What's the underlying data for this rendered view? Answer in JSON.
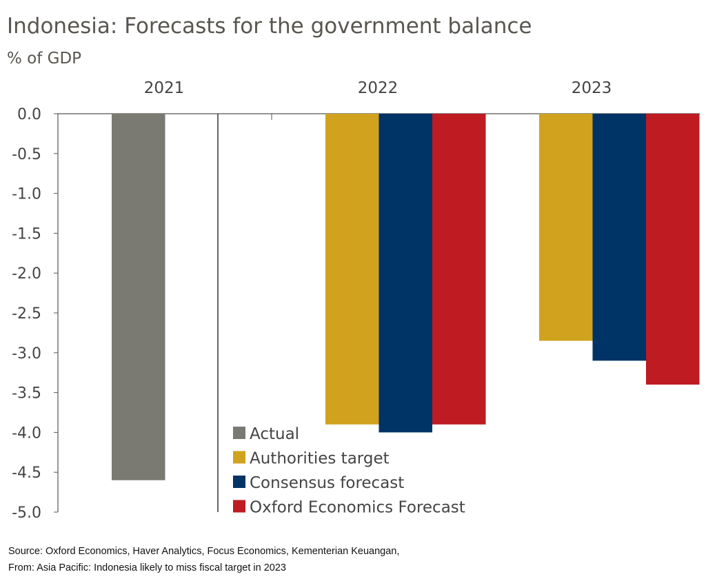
{
  "chart_data": {
    "type": "bar",
    "title": "Indonesia: Forecasts for the government balance",
    "ylabel": "% of GDP",
    "categories": [
      "2021",
      "2022",
      "2023"
    ],
    "ylim": [
      -5.0,
      0.0
    ],
    "yticks": [
      "0.0",
      "-0.5",
      "-1.0",
      "-1.5",
      "-2.0",
      "-2.5",
      "-3.0",
      "-3.5",
      "-4.0",
      "-4.5",
      "-5.0"
    ],
    "grid": false,
    "legend_position": "bottom-center",
    "series": [
      {
        "name": "Actual",
        "color": "#7a7a73",
        "values": [
          -4.6,
          null,
          null
        ]
      },
      {
        "name": "Authorities target",
        "color": "#d0a21e",
        "values": [
          null,
          -3.9,
          -2.85
        ]
      },
      {
        "name": "Consensus forecast",
        "color": "#003366",
        "values": [
          null,
          -4.0,
          -3.1
        ]
      },
      {
        "name": "Oxford Economics Forecast",
        "color": "#be1b22",
        "values": [
          null,
          -3.9,
          -3.4
        ]
      }
    ]
  },
  "source": "Source: Oxford Economics, Haver Analytics, Focus Economics, Kementerian Keuangan,",
  "from": "From: Asia Pacific: Indonesia likely to miss fiscal target in 2023"
}
